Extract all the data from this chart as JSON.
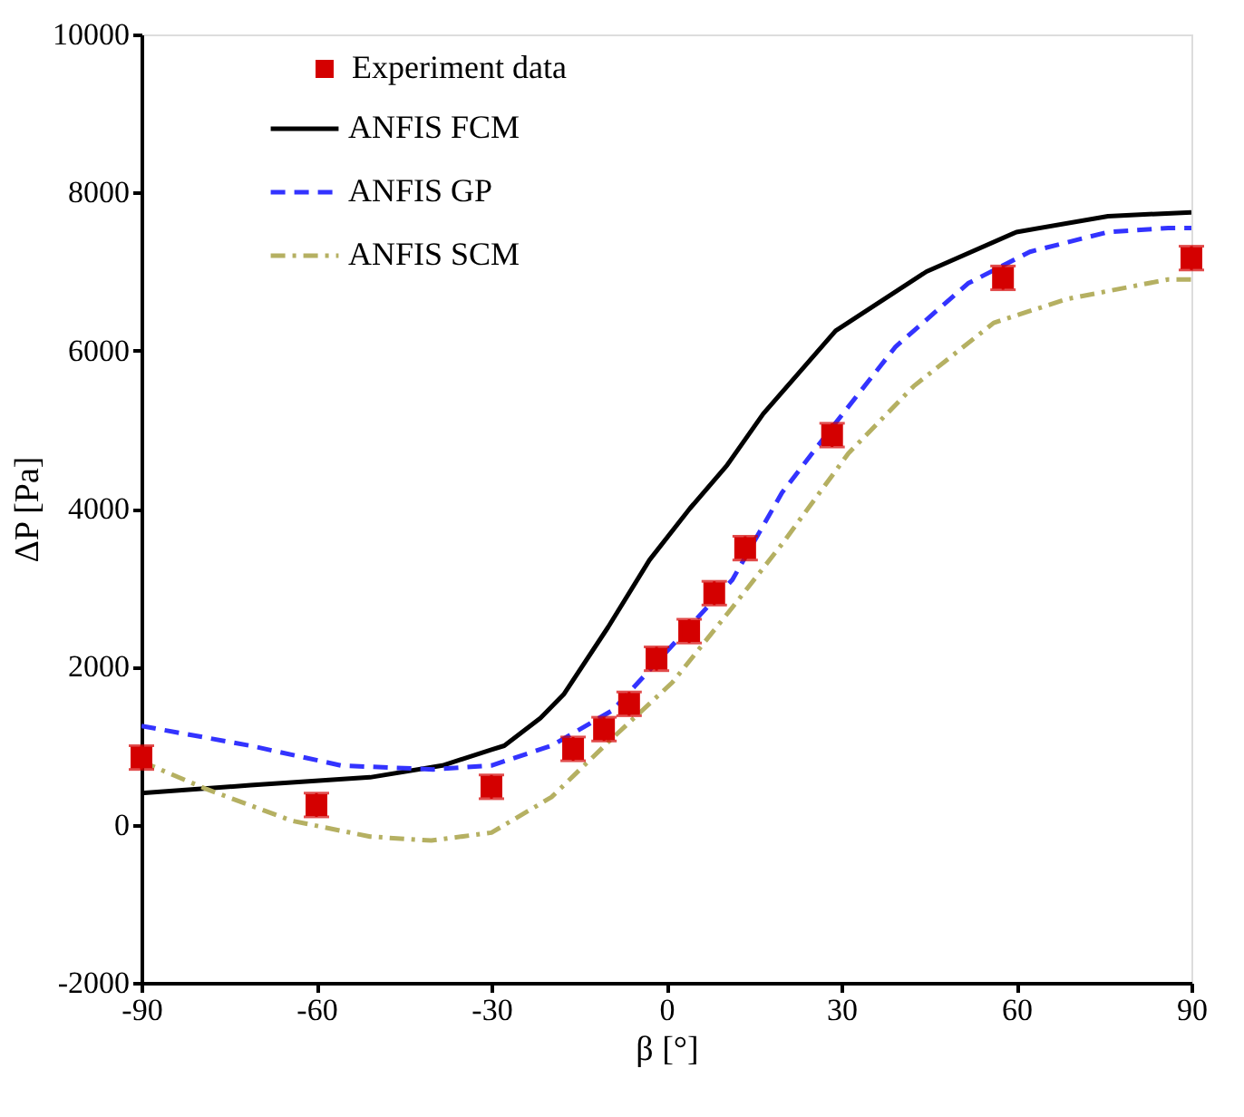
{
  "chart_data": {
    "type": "line",
    "xlabel": "β [°]",
    "ylabel": "ΔP [Pa]",
    "xlim": [
      -90,
      90
    ],
    "xticks": [
      -90,
      -60,
      -30,
      0,
      30,
      60,
      90
    ],
    "ylim": [
      -2000,
      10000
    ],
    "yticks": [
      -2000,
      0,
      2000,
      4000,
      6000,
      8000,
      10000
    ],
    "grid": false,
    "legend": "top left",
    "series": [
      {
        "name": "Experiment data",
        "type": "scatter",
        "marker": "square",
        "color": "#d40000",
        "x": [
          -90,
          -60,
          -30,
          -16,
          -10.7,
          -6.4,
          -1.7,
          3.9,
          8.2,
          13.5,
          28.4,
          57.7,
          90
        ],
        "values": [
          850,
          250,
          480,
          960,
          1210,
          1530,
          2100,
          2450,
          2930,
          3500,
          4930,
          6920,
          7170
        ],
        "errors": [
          150,
          150,
          150,
          150,
          150,
          150,
          150,
          150,
          150,
          150,
          150,
          150,
          150
        ]
      },
      {
        "name": "ANFIS FCM",
        "line_style": "solid",
        "color": "#000000",
        "x": [
          -90,
          -71.3,
          -50.8,
          -38.4,
          -30,
          -27.8,
          -21.6,
          -17.6,
          -10,
          -2.9,
          4,
          10.4,
          16.6,
          29,
          44.6,
          60,
          75.7,
          90
        ],
        "values": [
          400,
          500,
          600,
          750,
          950,
          1000,
          1350,
          1650,
          2500,
          3350,
          4000,
          4550,
          5200,
          6250,
          7000,
          7500,
          7700,
          7750
        ]
      },
      {
        "name": "ANFIS GP",
        "line_style": "dashed",
        "color": "#3333ff",
        "x": [
          -90,
          -71.3,
          -55.8,
          -40,
          -30,
          -19.7,
          -9.2,
          -1.1,
          5.1,
          11.3,
          19.8,
          28.1,
          39.3,
          51.7,
          62.3,
          75.7,
          86,
          90
        ],
        "values": [
          1250,
          1000,
          750,
          700,
          750,
          1000,
          1450,
          2100,
          2600,
          3100,
          4200,
          5000,
          6050,
          6850,
          7250,
          7500,
          7550,
          7550
        ]
      },
      {
        "name": "ANFIS SCM",
        "line_style": "dashdot",
        "color": "#b5b062",
        "x": [
          -90,
          -78.8,
          -64.2,
          -50.8,
          -40.3,
          -30,
          -19.7,
          -9.2,
          1,
          11.3,
          19.8,
          31.2,
          42.4,
          56.1,
          68.5,
          86,
          90
        ],
        "values": [
          800,
          450,
          50,
          -150,
          -200,
          -100,
          350,
          1100,
          1800,
          2750,
          3550,
          4700,
          5550,
          6350,
          6650,
          6900,
          6900
        ]
      }
    ]
  }
}
